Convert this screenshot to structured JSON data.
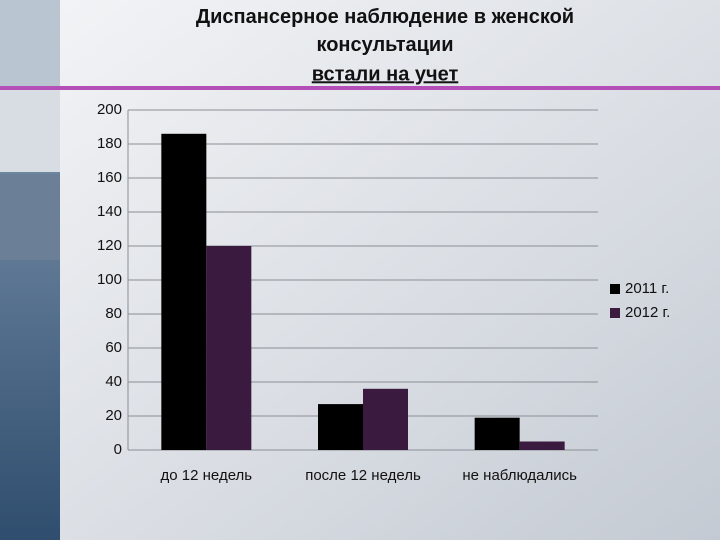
{
  "chart_data": {
    "type": "bar",
    "title": "Диспансерное наблюдение в женской консультации",
    "subtitle": "встали на учет",
    "categories": [
      "до 12 недель",
      "после 12 недель",
      "не наблюдались"
    ],
    "series": [
      {
        "name": "2011 г.",
        "color": "#000000",
        "values": [
          186,
          27,
          19
        ]
      },
      {
        "name": "2012 г.",
        "color": "#3b1a40",
        "values": [
          120,
          36,
          5
        ]
      }
    ],
    "ylim": [
      0,
      200
    ],
    "yticks": [
      0,
      20,
      40,
      60,
      80,
      100,
      120,
      140,
      160,
      180,
      200
    ],
    "grid": true,
    "legend": "right"
  }
}
